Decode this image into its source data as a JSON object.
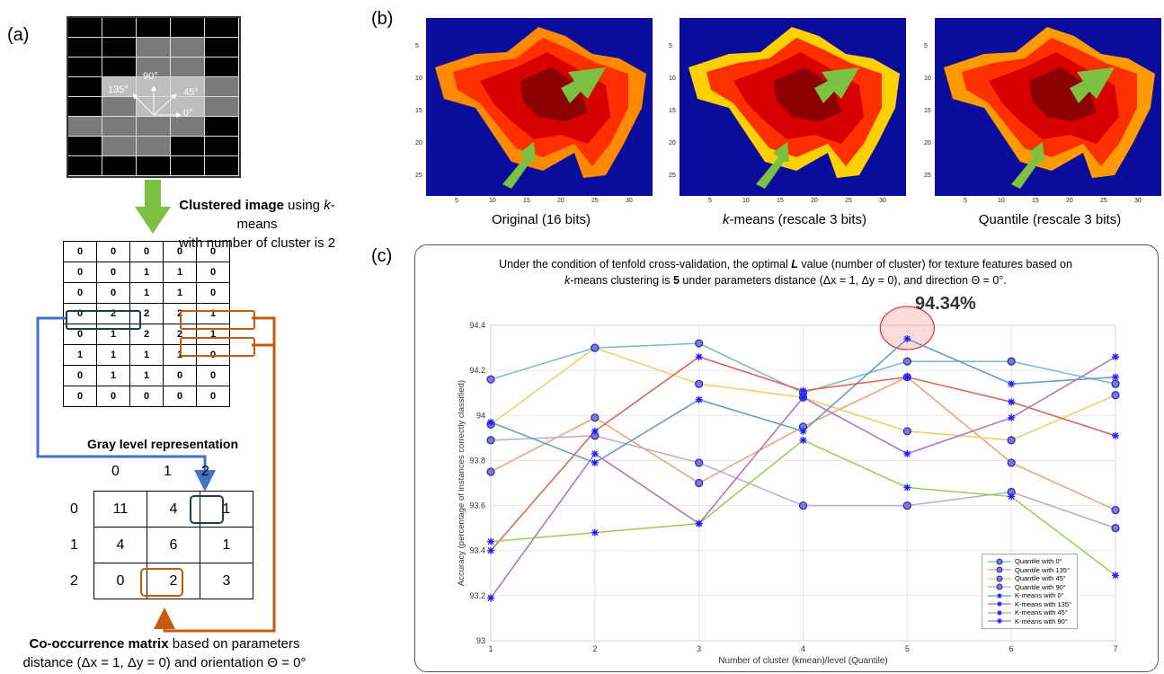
{
  "panel_a": {
    "label": "(a)",
    "directions": [
      "135°",
      "90°",
      "45°",
      "0°"
    ],
    "clustered_caption_bold": "Clustered image",
    "clustered_caption_rest1": " using ",
    "clustered_caption_italic": "k",
    "clustered_caption_rest2": "-means",
    "clustered_caption_line2": "with number of cluster is 2",
    "gray_levels": [
      [
        "0",
        "0",
        "0",
        "0",
        "0"
      ],
      [
        "0",
        "0",
        "1",
        "1",
        "0"
      ],
      [
        "0",
        "0",
        "1",
        "1",
        "0"
      ],
      [
        "0",
        "2",
        "2",
        "2",
        "1"
      ],
      [
        "0",
        "1",
        "2",
        "2",
        "1"
      ],
      [
        "1",
        "1",
        "1",
        "1",
        "0"
      ],
      [
        "0",
        "1",
        "1",
        "0",
        "0"
      ],
      [
        "0",
        "0",
        "0",
        "0",
        "0"
      ]
    ],
    "gray_caption": "Gray level representation",
    "cooc_headers": [
      "0",
      "1",
      "2"
    ],
    "cooc_matrix": [
      [
        "11",
        "4",
        "1"
      ],
      [
        "4",
        "6",
        "1"
      ],
      [
        "0",
        "2",
        "3"
      ]
    ],
    "cooc_caption_bold": "Co-occurrence matrix",
    "cooc_caption_rest": " based on parameters",
    "cooc_caption_line2": "distance (Δx = 1, Δy = 0) and orientation Θ = 0°",
    "colors": {
      "blue": "#4472c4",
      "orange": "#c55a11",
      "green": "#7dc142",
      "navy": "#1f3864"
    }
  },
  "panel_b": {
    "label": "(b)",
    "images": [
      {
        "caption": "Original (16 bits)"
      },
      {
        "caption_italic": "k",
        "caption": "-means (rescale 3 bits)"
      },
      {
        "caption": "Quantile (rescale 3 bits)"
      }
    ],
    "y_ticks": [
      "5",
      "10",
      "15",
      "20",
      "25"
    ],
    "x_ticks": [
      "5",
      "10",
      "15",
      "20",
      "25",
      "30"
    ]
  },
  "panel_c": {
    "label": "(c)",
    "title_line1_a": "Under the condition of tenfold cross-validation, the optimal ",
    "title_line1_b": "L",
    "title_line1_c": " value (number of cluster) for texture features based on",
    "title_line2_a": "k",
    "title_line2_b": "-means clustering is ",
    "title_line2_c": "5",
    "title_line2_d": " under parameters distance (Δx = 1, Δy = 0), and direction Θ = 0°.",
    "highlight": "94.34%"
  },
  "chart_data": {
    "type": "line",
    "xlabel": "Number of cluster (kmean)/level (Quantile)",
    "ylabel": "Accuracy (percentage of instances correctly classified)",
    "x": [
      1,
      2,
      3,
      4,
      5,
      6,
      7
    ],
    "ylim": [
      93,
      94.4
    ],
    "y_ticks": [
      "93",
      "93.2",
      "93.4",
      "93.6",
      "93.8",
      "94",
      "94.2",
      "94.4"
    ],
    "grid": true,
    "legend_position": "bottom-right",
    "series": [
      {
        "name": "Quantile with 0°",
        "marker": "circle",
        "color": "#7ab8c9",
        "values": [
          94.16,
          94.3,
          94.32,
          94.1,
          94.24,
          94.24,
          94.14
        ]
      },
      {
        "name": "Quantile with 135°",
        "marker": "circle",
        "color": "#f0a070",
        "values": [
          93.75,
          93.99,
          93.7,
          93.95,
          94.17,
          93.79,
          93.58
        ]
      },
      {
        "name": "Quantile with 45°",
        "marker": "circle",
        "color": "#e8d060",
        "values": [
          93.96,
          94.3,
          94.14,
          94.08,
          93.93,
          93.89,
          94.09
        ]
      },
      {
        "name": "Quantile with 90°",
        "marker": "circle",
        "color": "#b8aad8",
        "values": [
          93.89,
          93.91,
          93.79,
          93.6,
          93.6,
          93.66,
          93.5
        ]
      },
      {
        "name": "K-means with 0°",
        "marker": "star",
        "color": "#5a9ac8",
        "values": [
          93.97,
          93.79,
          94.07,
          93.93,
          94.34,
          94.14,
          94.17
        ]
      },
      {
        "name": "K-means with 135°",
        "marker": "star",
        "color": "#e06050",
        "values": [
          93.4,
          93.93,
          94.26,
          94.11,
          94.17,
          94.06,
          93.91
        ]
      },
      {
        "name": "K-means with 45°",
        "marker": "star",
        "color": "#98cc50",
        "values": [
          93.44,
          93.48,
          93.52,
          93.89,
          93.68,
          93.64,
          93.29
        ]
      },
      {
        "name": "K-means with 90°",
        "marker": "star",
        "color": "#b070c0",
        "values": [
          93.19,
          93.83,
          93.52,
          94.08,
          93.83,
          93.99,
          94.26
        ]
      }
    ]
  }
}
